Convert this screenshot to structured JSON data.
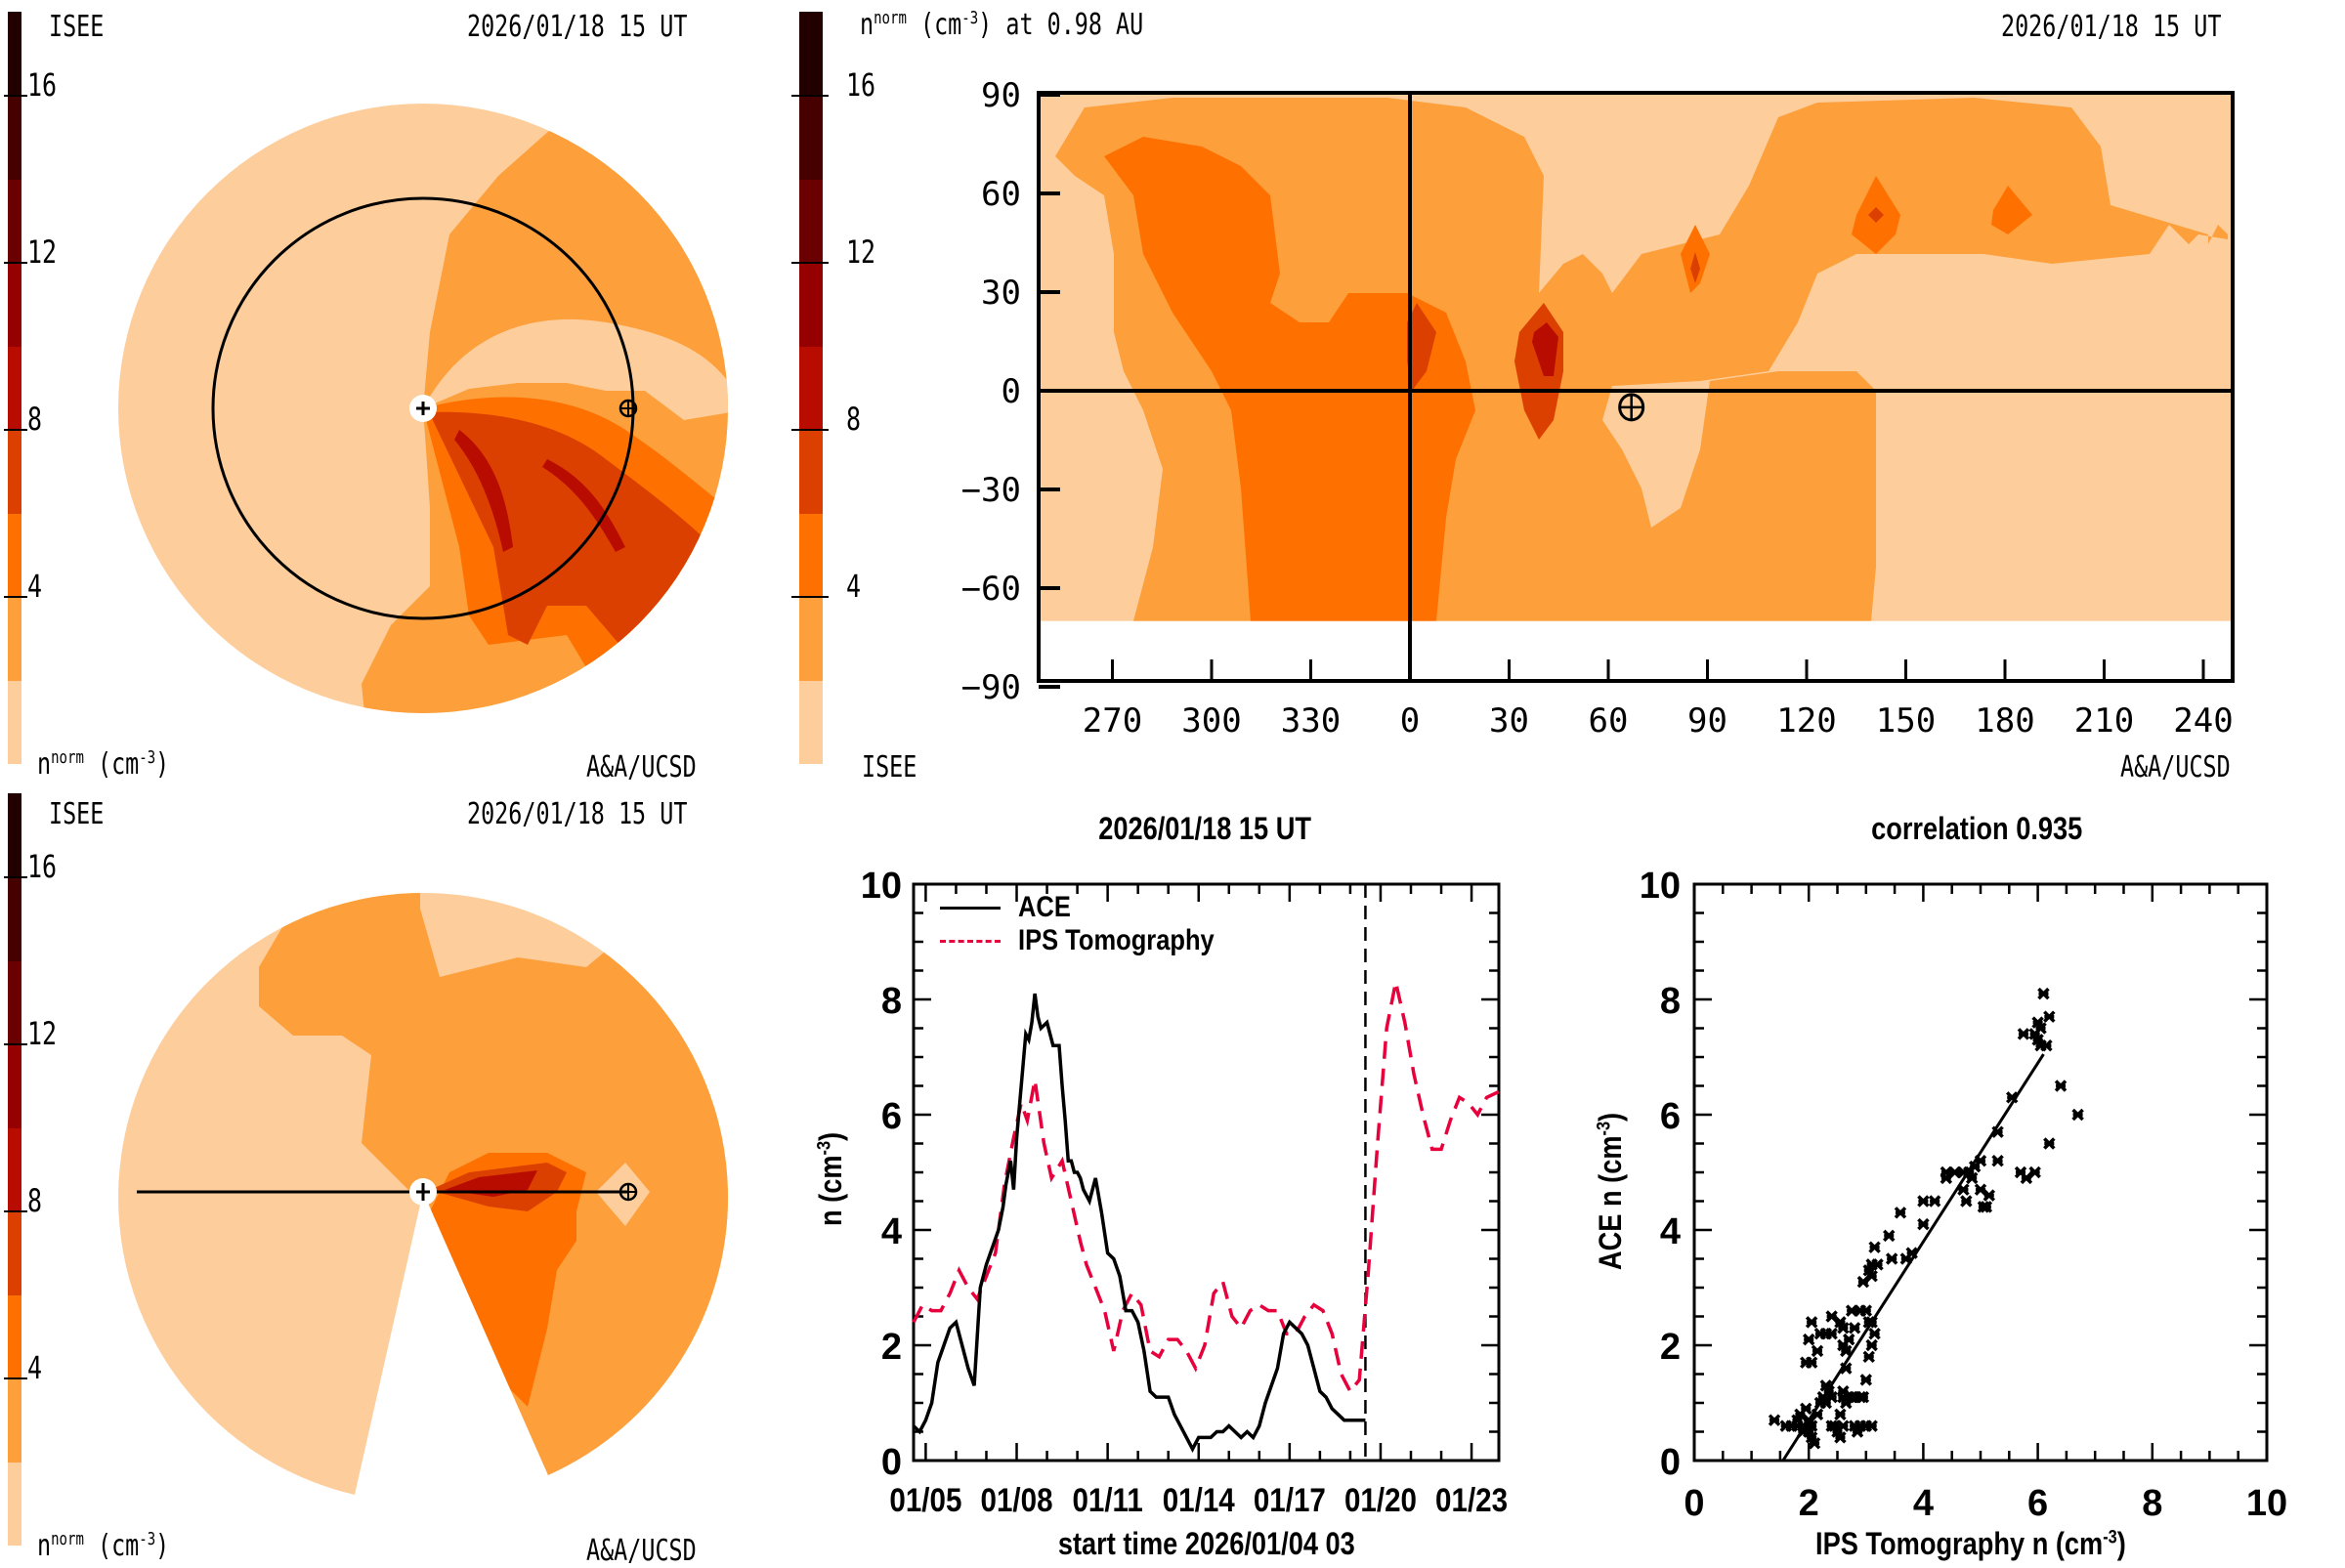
{
  "colormap": {
    "levels": [
      0,
      2,
      4,
      6,
      8,
      10,
      12,
      14,
      16,
      18
    ],
    "colors": [
      "#fdce9c",
      "#fd9f3a",
      "#fe7100",
      "#dc4000",
      "#b90c00",
      "#950000",
      "#6a0000",
      "#470000",
      "#230000"
    ],
    "ticks": [
      "4",
      "8",
      "12",
      "16"
    ],
    "tick_values": [
      4,
      8,
      12,
      16
    ]
  },
  "panel_top_left": {
    "institution": "ISEE",
    "timestamp": "2026/01/18 15 UT",
    "quantity": "n",
    "quantity_sup": "norm",
    "unit": "(cm",
    "unit_sup": "-3",
    "unit_close": ")",
    "credit": "A&A/UCSD",
    "view": "ecliptic"
  },
  "panel_top_right": {
    "quantity": "n",
    "quantity_sup": "norm",
    "unit": "(cm",
    "unit_sup": "-3",
    "unit_close": ")",
    "distance_label": "at 0.98 AU",
    "timestamp": "2026/01/18 15 UT",
    "institution": "ISEE",
    "credit": "A&A/UCSD",
    "lat_ticks": [
      "90",
      "60",
      "30",
      "0",
      "−30",
      "−60",
      "−90"
    ],
    "lat_tick_values": [
      90,
      60,
      30,
      0,
      -30,
      -60,
      -90
    ],
    "lon_ticks": [
      "270",
      "300",
      "330",
      "0",
      "30",
      "60",
      "90",
      "120",
      "150",
      "180",
      "210",
      "240"
    ],
    "lon_tick_offsets": [
      -90,
      -60,
      -30,
      0,
      30,
      60,
      90,
      120,
      150,
      180,
      210,
      240
    ],
    "earth_marker": {
      "lon_offset": 67,
      "lat": -5
    }
  },
  "panel_bottom_left": {
    "institution": "ISEE",
    "timestamp": "2026/01/18 15 UT",
    "quantity": "n",
    "quantity_sup": "norm",
    "unit": "(cm",
    "unit_sup": "-3",
    "unit_close": ")",
    "credit": "A&A/UCSD",
    "view": "meridional"
  },
  "chart_data": [
    {
      "type": "line",
      "title": "2026/01/18 15 UT",
      "xlabel": "start time 2026/01/04 03",
      "ylabel": "n (cm",
      "ylabel_sup": "-3",
      "ylabel_close": ")",
      "xlim_days": [
        0.6,
        19.9
      ],
      "ylim": [
        0,
        10
      ],
      "yticks": [
        "0",
        "2",
        "4",
        "6",
        "8",
        "10"
      ],
      "ytick_values": [
        0,
        2,
        4,
        6,
        8,
        10
      ],
      "xticks": [
        "01/05",
        "01/08",
        "01/11",
        "01/14",
        "01/17",
        "01/20",
        "01/23"
      ],
      "xtick_days": [
        1,
        4,
        7,
        10,
        13,
        16,
        19
      ],
      "now_marker_day": 15.5,
      "legend": [
        {
          "name": "ACE",
          "style": "solid",
          "color": "#000000"
        },
        {
          "name": "IPS Tomography",
          "style": "dashed",
          "color": "#e8003c"
        }
      ],
      "series": [
        {
          "name": "ACE",
          "x": [
            0.6,
            0.8,
            1.0,
            1.2,
            1.4,
            1.6,
            1.8,
            2.0,
            2.2,
            2.4,
            2.6,
            2.8,
            3.0,
            3.2,
            3.4,
            3.55,
            3.65,
            3.8,
            3.9,
            4.0,
            4.1,
            4.2,
            4.3,
            4.4,
            4.5,
            4.6,
            4.7,
            4.8,
            5.0,
            5.2,
            5.4,
            5.5,
            5.6,
            5.7,
            5.8,
            5.9,
            6.0,
            6.1,
            6.2,
            6.3,
            6.4,
            6.6,
            6.8,
            7.0,
            7.2,
            7.4,
            7.6,
            7.8,
            8.0,
            8.2,
            8.4,
            8.6,
            8.8,
            9.0,
            9.2,
            9.4,
            9.6,
            9.8,
            10.0,
            10.2,
            10.4,
            10.6,
            10.8,
            11.0,
            11.2,
            11.4,
            11.6,
            11.8,
            12.0,
            12.2,
            12.4,
            12.6,
            12.8,
            13.0,
            13.2,
            13.4,
            13.6,
            13.8,
            14.0,
            14.2,
            14.4,
            14.6,
            14.8,
            15.0,
            15.2,
            15.4,
            15.5
          ],
          "values": [
            0.6,
            0.5,
            0.7,
            1.0,
            1.7,
            2.0,
            2.3,
            2.4,
            2.0,
            1.6,
            1.3,
            3.0,
            3.4,
            3.7,
            4.0,
            4.4,
            4.8,
            5.2,
            4.7,
            5.6,
            6.2,
            6.8,
            7.4,
            7.3,
            7.6,
            8.1,
            7.7,
            7.5,
            7.6,
            7.2,
            7.2,
            6.5,
            5.9,
            5.2,
            5.2,
            5.0,
            5.0,
            4.9,
            4.7,
            4.6,
            4.5,
            4.9,
            4.3,
            3.6,
            3.5,
            3.2,
            2.6,
            2.6,
            2.4,
            1.9,
            1.2,
            1.1,
            1.1,
            1.1,
            0.8,
            0.6,
            0.4,
            0.2,
            0.4,
            0.4,
            0.4,
            0.5,
            0.5,
            0.6,
            0.5,
            0.4,
            0.5,
            0.4,
            0.6,
            1.0,
            1.3,
            1.6,
            2.2,
            2.4,
            2.3,
            2.2,
            2.0,
            1.6,
            1.2,
            1.1,
            0.9,
            0.8,
            0.7,
            0.7,
            0.7,
            0.7,
            0.7
          ]
        },
        {
          "name": "IPS Tomography",
          "x": [
            0.6,
            0.9,
            1.2,
            1.5,
            1.8,
            2.1,
            2.4,
            2.7,
            3.0,
            3.3,
            3.6,
            3.9,
            4.15,
            4.35,
            4.6,
            4.9,
            5.15,
            5.5,
            5.8,
            6.1,
            6.3,
            6.6,
            6.9,
            7.2,
            7.5,
            7.8,
            8.1,
            8.4,
            8.7,
            9.0,
            9.3,
            9.6,
            9.9,
            10.2,
            10.5,
            10.8,
            11.1,
            11.4,
            11.7,
            12.0,
            12.3,
            12.6,
            12.9,
            13.2,
            13.5,
            13.8,
            14.1,
            14.4,
            14.7,
            15.0,
            15.3,
            15.6,
            15.9,
            16.2,
            16.5,
            16.8,
            17.1,
            17.4,
            17.7,
            18.0,
            18.3,
            18.6,
            18.9,
            19.2,
            19.5,
            19.9
          ],
          "values": [
            2.4,
            2.7,
            2.6,
            2.6,
            2.9,
            3.3,
            3.0,
            2.8,
            3.2,
            3.6,
            4.8,
            5.6,
            6.2,
            5.9,
            6.6,
            5.5,
            4.9,
            5.2,
            4.5,
            3.8,
            3.4,
            3.0,
            2.6,
            1.9,
            2.6,
            2.9,
            2.7,
            1.9,
            1.8,
            2.1,
            2.1,
            1.9,
            1.6,
            2.0,
            2.9,
            3.1,
            2.5,
            2.3,
            2.6,
            2.7,
            2.6,
            2.6,
            2.2,
            2.2,
            2.5,
            2.7,
            2.6,
            2.2,
            1.5,
            1.2,
            1.4,
            3.3,
            5.5,
            7.5,
            8.3,
            7.6,
            6.7,
            6.0,
            5.4,
            5.4,
            5.9,
            6.3,
            6.2,
            6.0,
            6.3,
            6.4
          ]
        }
      ]
    },
    {
      "type": "scatter",
      "title": "correlation 0.935",
      "correlation": 0.935,
      "xlabel": "IPS Tomography n (cm",
      "xlabel_sup": "-3",
      "xlabel_close": ")",
      "ylabel": "ACE n (cm",
      "ylabel_sup": "-3",
      "ylabel_close": ")",
      "xlim": [
        0,
        10
      ],
      "ylim": [
        0,
        10
      ],
      "xticks": [
        "0",
        "2",
        "4",
        "6",
        "8",
        "10"
      ],
      "yticks": [
        "0",
        "2",
        "4",
        "6",
        "8",
        "10"
      ],
      "tick_values": [
        0,
        2,
        4,
        6,
        8,
        10
      ],
      "fit_line": {
        "x": [
          1.55,
          6.1
        ],
        "y": [
          0.0,
          7.05
        ]
      },
      "points": [
        [
          1.4,
          0.7
        ],
        [
          1.6,
          0.6
        ],
        [
          1.7,
          0.6
        ],
        [
          1.8,
          0.6
        ],
        [
          1.8,
          0.7
        ],
        [
          1.85,
          0.8
        ],
        [
          1.9,
          0.6
        ],
        [
          1.9,
          0.5
        ],
        [
          1.95,
          0.9
        ],
        [
          2.0,
          0.7
        ],
        [
          2.0,
          0.5
        ],
        [
          2.05,
          0.4
        ],
        [
          2.1,
          0.3
        ],
        [
          2.05,
          0.6
        ],
        [
          2.15,
          0.8
        ],
        [
          2.2,
          1.0
        ],
        [
          2.3,
          1.0
        ],
        [
          2.25,
          1.1
        ],
        [
          2.3,
          1.3
        ],
        [
          2.35,
          1.2
        ],
        [
          2.4,
          1.1
        ],
        [
          2.4,
          0.6
        ],
        [
          2.45,
          0.6
        ],
        [
          2.5,
          0.5
        ],
        [
          2.55,
          0.4
        ],
        [
          2.6,
          0.6
        ],
        [
          2.55,
          0.8
        ],
        [
          2.6,
          1.1
        ],
        [
          2.6,
          1.2
        ],
        [
          2.65,
          1.0
        ],
        [
          2.7,
          1.1
        ],
        [
          2.75,
          1.1
        ],
        [
          2.8,
          1.1
        ],
        [
          2.9,
          1.1
        ],
        [
          2.95,
          1.1
        ],
        [
          3.0,
          1.4
        ],
        [
          2.8,
          0.6
        ],
        [
          2.85,
          0.5
        ],
        [
          2.9,
          0.6
        ],
        [
          3.0,
          0.6
        ],
        [
          3.1,
          0.6
        ],
        [
          1.95,
          1.7
        ],
        [
          2.05,
          1.7
        ],
        [
          2.15,
          1.9
        ],
        [
          2.0,
          2.1
        ],
        [
          2.05,
          2.4
        ],
        [
          2.2,
          2.2
        ],
        [
          2.3,
          2.2
        ],
        [
          2.4,
          2.2
        ],
        [
          2.4,
          2.5
        ],
        [
          2.55,
          2.4
        ],
        [
          2.6,
          2.3
        ],
        [
          2.6,
          2.0
        ],
        [
          2.65,
          1.9
        ],
        [
          2.65,
          1.6
        ],
        [
          2.7,
          2.1
        ],
        [
          2.8,
          2.3
        ],
        [
          2.75,
          2.6
        ],
        [
          2.9,
          2.6
        ],
        [
          3.0,
          2.6
        ],
        [
          3.05,
          2.4
        ],
        [
          3.1,
          2.4
        ],
        [
          3.15,
          2.2
        ],
        [
          3.1,
          2.0
        ],
        [
          3.05,
          1.8
        ],
        [
          2.95,
          3.1
        ],
        [
          3.05,
          3.3
        ],
        [
          3.1,
          3.4
        ],
        [
          3.1,
          3.2
        ],
        [
          3.2,
          3.4
        ],
        [
          3.15,
          3.7
        ],
        [
          3.4,
          3.9
        ],
        [
          3.45,
          3.5
        ],
        [
          3.6,
          4.3
        ],
        [
          3.7,
          3.5
        ],
        [
          3.8,
          3.6
        ],
        [
          4.0,
          4.1
        ],
        [
          4.0,
          4.5
        ],
        [
          4.2,
          4.5
        ],
        [
          4.4,
          4.9
        ],
        [
          4.7,
          4.7
        ],
        [
          4.75,
          4.5
        ],
        [
          4.85,
          4.9
        ],
        [
          5.0,
          4.7
        ],
        [
          5.05,
          4.4
        ],
        [
          5.15,
          4.6
        ],
        [
          5.1,
          4.4
        ],
        [
          5.8,
          4.9
        ],
        [
          4.4,
          5.0
        ],
        [
          4.55,
          5.0
        ],
        [
          4.7,
          5.0
        ],
        [
          4.8,
          5.0
        ],
        [
          4.9,
          5.1
        ],
        [
          5.0,
          5.2
        ],
        [
          5.3,
          5.2
        ],
        [
          5.3,
          5.7
        ],
        [
          5.7,
          5.0
        ],
        [
          5.55,
          6.3
        ],
        [
          5.75,
          7.4
        ],
        [
          5.95,
          7.4
        ],
        [
          6.0,
          7.3
        ],
        [
          6.05,
          7.5
        ],
        [
          6.0,
          7.6
        ],
        [
          6.05,
          7.2
        ],
        [
          6.15,
          7.2
        ],
        [
          6.1,
          8.1
        ],
        [
          6.2,
          7.7
        ],
        [
          6.4,
          6.5
        ],
        [
          6.7,
          6.0
        ],
        [
          6.2,
          5.5
        ],
        [
          5.95,
          5.0
        ]
      ]
    }
  ]
}
